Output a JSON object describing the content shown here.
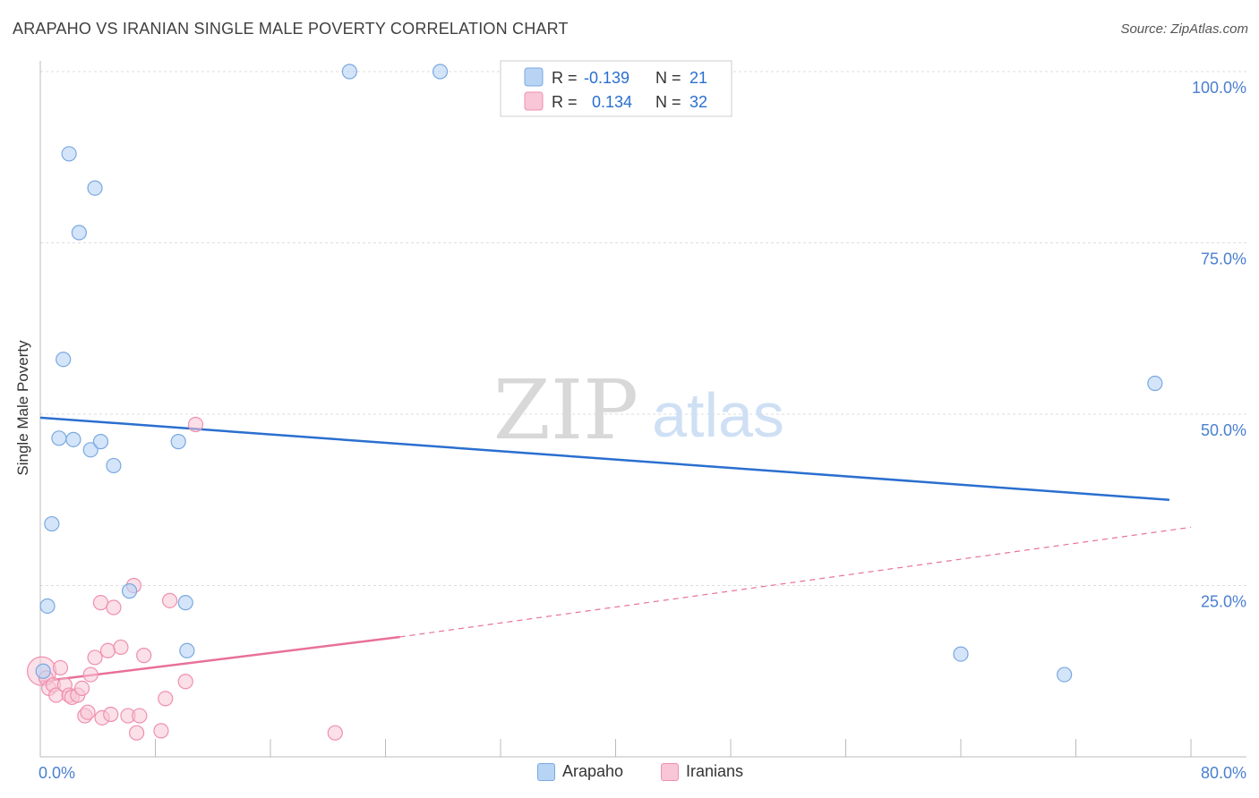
{
  "title": "ARAPAHO VS IRANIAN SINGLE MALE POVERTY CORRELATION CHART",
  "source": "Source: ZipAtlas.com",
  "watermark": {
    "zip": "ZIP",
    "atlas": "atlas"
  },
  "colors": {
    "arapaho_fill": "#b8d4f5",
    "arapaho_stroke": "#7aa8e0",
    "arapaho_line": "#2a6fcf",
    "iranians_fill": "#f8c6d6",
    "iranians_stroke": "#ef8fb0",
    "iranians_line": "#e8709a",
    "axis_text": "#4a7fd0",
    "grid": "#dddddd"
  },
  "legend": {
    "arapaho": {
      "r_label": "R =",
      "r_value": "-0.139",
      "n_label": "N =",
      "n_value": "21"
    },
    "iranians": {
      "r_label": "R =",
      "r_value": "0.134",
      "n_label": "N =",
      "n_value": "32"
    }
  },
  "chart_data": {
    "type": "scatter",
    "title": "ARAPAHO VS IRANIAN SINGLE MALE POVERTY CORRELATION CHART",
    "xlabel": "",
    "ylabel": "Single Male Poverty",
    "xlim": [
      0,
      80
    ],
    "ylim": [
      0,
      100
    ],
    "x_tick_labels": [
      "0.0%",
      "80.0%"
    ],
    "y_tick_labels": [
      "25.0%",
      "50.0%",
      "75.0%",
      "100.0%"
    ],
    "y_ticks": [
      25,
      50,
      75,
      100
    ],
    "grid": true,
    "legend_position": "top-center",
    "series": [
      {
        "name": "Arapaho",
        "points": [
          [
            0.2,
            12.5
          ],
          [
            0.5,
            22.0
          ],
          [
            0.8,
            34.0
          ],
          [
            1.3,
            46.5
          ],
          [
            1.6,
            58.0
          ],
          [
            2.0,
            88.0
          ],
          [
            2.3,
            46.3
          ],
          [
            2.7,
            76.5
          ],
          [
            3.5,
            44.8
          ],
          [
            3.8,
            83.0
          ],
          [
            4.2,
            46.0
          ],
          [
            5.1,
            42.5
          ],
          [
            6.2,
            24.2
          ],
          [
            9.6,
            46.0
          ],
          [
            10.1,
            22.5
          ],
          [
            10.2,
            15.5
          ],
          [
            21.5,
            100.0
          ],
          [
            27.8,
            100.0
          ],
          [
            64.0,
            15.0
          ],
          [
            71.2,
            12.0
          ],
          [
            77.5,
            54.5
          ]
        ],
        "trend": {
          "x": [
            0,
            78.5
          ],
          "y": [
            49.5,
            37.5
          ],
          "style": "solid"
        }
      },
      {
        "name": "Iranians",
        "points": [
          [
            0.1,
            12.5
          ],
          [
            0.4,
            11.5
          ],
          [
            0.6,
            10.0
          ],
          [
            0.9,
            10.5
          ],
          [
            1.1,
            9.0
          ],
          [
            1.4,
            13.0
          ],
          [
            1.7,
            10.5
          ],
          [
            2.0,
            9.0
          ],
          [
            2.2,
            8.7
          ],
          [
            2.6,
            9.0
          ],
          [
            2.9,
            10.0
          ],
          [
            3.1,
            6.0
          ],
          [
            3.3,
            6.5
          ],
          [
            3.5,
            12.0
          ],
          [
            3.8,
            14.5
          ],
          [
            4.2,
            22.5
          ],
          [
            4.3,
            5.7
          ],
          [
            4.7,
            15.5
          ],
          [
            4.9,
            6.2
          ],
          [
            5.1,
            21.8
          ],
          [
            5.6,
            16.0
          ],
          [
            6.1,
            6.0
          ],
          [
            6.5,
            25.0
          ],
          [
            6.7,
            3.5
          ],
          [
            6.9,
            6.0
          ],
          [
            7.2,
            14.8
          ],
          [
            8.4,
            3.8
          ],
          [
            8.7,
            8.5
          ],
          [
            9.0,
            22.8
          ],
          [
            10.1,
            11.0
          ],
          [
            10.8,
            48.5
          ],
          [
            20.5,
            3.5
          ]
        ],
        "trend": {
          "x": [
            0,
            25
          ],
          "y": [
            11.0,
            17.5
          ],
          "style": "solid"
        },
        "trend_extension": {
          "x": [
            25,
            80
          ],
          "y": [
            17.5,
            33.5
          ],
          "style": "dashed"
        }
      }
    ]
  }
}
